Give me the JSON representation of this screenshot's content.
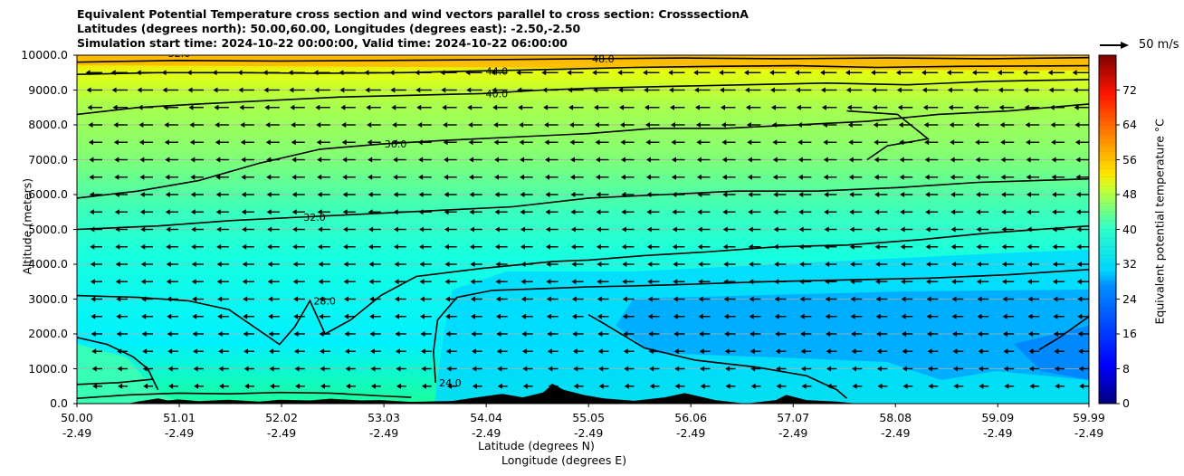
{
  "title": {
    "line1": "Equivalent Potential Temperature cross section and wind vectors parallel to cross section: CrosssectionA",
    "line2": "Latitudes (degrees north): 50.00,60.00, Longitudes (degrees east): -2.50,-2.50",
    "line3": "Simulation start time: 2024-10-22 00:00:00, Valid time: 2024-10-22 06:00:00"
  },
  "chart_data": {
    "type": "heatmap",
    "subtype": "filled contour cross section with wind vectors",
    "ylabel": "Altitude (meters)",
    "xlabel_lat": "Latitude (degrees N)",
    "xlabel_lon": "Longitude (degrees E)",
    "ylim": [
      0,
      10000
    ],
    "xlim": [
      50.0,
      59.99
    ],
    "y_ticks": [
      0,
      1000,
      2000,
      3000,
      4000,
      5000,
      6000,
      7000,
      8000,
      9000,
      10000
    ],
    "y_tick_labels": [
      "0.0",
      "1000.0",
      "2000.0",
      "3000.0",
      "4000.0",
      "5000.0",
      "6000.0",
      "7000.0",
      "8000.0",
      "9000.0",
      "10000.0"
    ],
    "x_ticks": [
      50.0,
      51.01,
      52.02,
      53.03,
      54.04,
      55.05,
      56.06,
      57.07,
      58.08,
      59.09,
      59.99
    ],
    "x_tick_lat_labels": [
      "50.00",
      "51.01",
      "52.02",
      "53.03",
      "54.04",
      "55.05",
      "56.06",
      "57.07",
      "58.08",
      "59.09",
      "59.99"
    ],
    "x_tick_lon_labels": [
      "-2.49",
      "-2.49",
      "-2.49",
      "-2.49",
      "-2.49",
      "-2.49",
      "-2.49",
      "-2.49",
      "-2.49",
      "-2.49",
      "-2.49"
    ],
    "grid": "horizontal",
    "colormap": "jet",
    "colorbar": {
      "label": "Equivalent potential temperature °C",
      "range": [
        0,
        80
      ],
      "ticks": [
        0,
        8,
        16,
        24,
        32,
        40,
        48,
        56,
        64,
        72
      ],
      "tick_labels": [
        "0",
        "8",
        "16",
        "24",
        "32",
        "40",
        "48",
        "56",
        "64",
        "72"
      ]
    },
    "wind_key": {
      "label": "50 m/s",
      "speed": 50
    },
    "contour_labels": [
      "52.0",
      "48.0",
      "44.0",
      "40.0",
      "36.0",
      "32.0",
      "28.0",
      "24.0"
    ],
    "contours": [
      {
        "level": 24,
        "segments": [
          [
            [
              53.54,
              600
            ],
            [
              53.52,
              1500
            ],
            [
              53.56,
              2400
            ],
            [
              53.75,
              3050
            ],
            [
              54.1,
              3250
            ],
            [
              54.6,
              3300
            ],
            [
              55.05,
              3350
            ],
            [
              55.5,
              3380
            ],
            [
              56.0,
              3420
            ],
            [
              56.8,
              3500
            ],
            [
              57.6,
              3550
            ],
            [
              58.4,
              3600
            ],
            [
              59.2,
              3700
            ],
            [
              59.99,
              3850
            ]
          ],
          [
            [
              55.05,
              2550
            ],
            [
              55.2,
              2300
            ],
            [
              55.6,
              1600
            ],
            [
              56.1,
              1250
            ],
            [
              56.7,
              1050
            ],
            [
              57.2,
              800
            ],
            [
              57.5,
              400
            ],
            [
              57.6,
              150
            ]
          ],
          [
            [
              59.5,
              1550
            ],
            [
              59.7,
              1900
            ],
            [
              59.99,
              2500
            ]
          ],
          [
            [
              51.6,
              20
            ],
            [
              52.4,
              60
            ],
            [
              53.2,
              20
            ],
            [
              53.8,
              60
            ],
            [
              54.4,
              30
            ],
            [
              55.1,
              40
            ],
            [
              55.8,
              50
            ],
            [
              56.3,
              40
            ]
          ]
        ]
      },
      {
        "level": 28,
        "segments": [
          [
            [
              50.0,
              1900
            ],
            [
              50.3,
              1700
            ],
            [
              50.55,
              1350
            ],
            [
              50.7,
              1000
            ],
            [
              50.75,
              700
            ],
            [
              50.8,
              400
            ]
          ],
          [
            [
              50.0,
              3100
            ],
            [
              50.6,
              3050
            ],
            [
              51.1,
              2950
            ],
            [
              51.5,
              2700
            ],
            [
              51.8,
              2100
            ],
            [
              52.0,
              1700
            ],
            [
              52.15,
              2200
            ],
            [
              52.3,
              2950
            ],
            [
              52.45,
              2000
            ],
            [
              52.7,
              2400
            ],
            [
              53.0,
              3100
            ],
            [
              53.35,
              3650
            ],
            [
              54.0,
              3880
            ],
            [
              54.7,
              4080
            ],
            [
              55.05,
              4120
            ],
            [
              55.6,
              4250
            ],
            [
              56.2,
              4350
            ],
            [
              56.9,
              4500
            ],
            [
              57.6,
              4550
            ],
            [
              58.3,
              4700
            ],
            [
              59.0,
              4900
            ],
            [
              59.99,
              5100
            ]
          ],
          [
            [
              50.0,
              550
            ],
            [
              50.4,
              600
            ],
            [
              50.75,
              700
            ]
          ]
        ]
      },
      {
        "level": 32,
        "segments": [
          [
            [
              50.0,
              5000
            ],
            [
              50.8,
              5100
            ],
            [
              51.5,
              5250
            ],
            [
              52.2,
              5350
            ],
            [
              52.9,
              5450
            ],
            [
              53.6,
              5550
            ],
            [
              54.3,
              5650
            ],
            [
              55.05,
              5900
            ],
            [
              55.8,
              6000
            ],
            [
              56.5,
              6100
            ],
            [
              57.3,
              6100
            ],
            [
              58.1,
              6200
            ],
            [
              58.9,
              6350
            ],
            [
              59.99,
              6450
            ]
          ],
          [
            [
              50.0,
              150
            ],
            [
              50.5,
              250
            ],
            [
              51.0,
              300
            ],
            [
              51.5,
              280
            ],
            [
              52.0,
              320
            ],
            [
              52.5,
              300
            ],
            [
              53.0,
              220
            ],
            [
              53.3,
              180
            ]
          ]
        ]
      },
      {
        "level": 36,
        "segments": [
          [
            [
              50.0,
              5900
            ],
            [
              50.6,
              6100
            ],
            [
              51.2,
              6400
            ],
            [
              51.8,
              6900
            ],
            [
              52.4,
              7300
            ],
            [
              53.0,
              7450
            ],
            [
              53.6,
              7550
            ],
            [
              54.3,
              7650
            ],
            [
              55.05,
              7750
            ],
            [
              55.7,
              7900
            ],
            [
              56.4,
              7900
            ],
            [
              57.1,
              8000
            ],
            [
              57.8,
              8100
            ],
            [
              58.5,
              8300
            ],
            [
              59.2,
              8400
            ],
            [
              59.99,
              8600
            ]
          ],
          [
            [
              57.6,
              8400
            ],
            [
              58.1,
              8300
            ],
            [
              58.4,
              7600
            ],
            [
              58.0,
              7400
            ],
            [
              57.8,
              7000
            ]
          ]
        ]
      },
      {
        "level": 40,
        "segments": [
          [
            [
              50.0,
              8300
            ],
            [
              50.6,
              8500
            ],
            [
              51.2,
              8600
            ],
            [
              51.9,
              8700
            ],
            [
              52.6,
              8800
            ],
            [
              53.3,
              8850
            ],
            [
              54.0,
              8900
            ],
            [
              54.6,
              9000
            ],
            [
              55.05,
              9050
            ],
            [
              55.8,
              9100
            ],
            [
              56.6,
              9150
            ],
            [
              57.4,
              9200
            ],
            [
              58.2,
              9150
            ],
            [
              59.0,
              9250
            ],
            [
              59.99,
              9300
            ]
          ]
        ]
      },
      {
        "level": 44,
        "segments": [
          [
            [
              50.0,
              9450
            ],
            [
              50.8,
              9500
            ],
            [
              51.6,
              9500
            ],
            [
              52.4,
              9480
            ],
            [
              53.2,
              9500
            ],
            [
              54.0,
              9550
            ],
            [
              54.8,
              9600
            ],
            [
              55.5,
              9650
            ],
            [
              56.3,
              9680
            ],
            [
              57.1,
              9700
            ],
            [
              57.9,
              9650
            ],
            [
              58.7,
              9680
            ],
            [
              59.99,
              9700
            ]
          ]
        ]
      },
      {
        "level": 48,
        "segments": [
          [
            [
              50.0,
              9800
            ],
            [
              51.0,
              9850
            ],
            [
              52.0,
              9830
            ],
            [
              53.0,
              9850
            ],
            [
              54.0,
              9870
            ],
            [
              55.05,
              9900
            ],
            [
              56.0,
              9920
            ],
            [
              57.0,
              9900
            ],
            [
              58.0,
              9920
            ],
            [
              59.0,
              9900
            ],
            [
              59.99,
              9930
            ]
          ]
        ]
      }
    ],
    "wind_vector_grid": {
      "x": [
        50.0,
        50.25,
        50.5,
        50.75,
        51.0,
        51.25,
        51.5,
        51.75,
        52.0,
        52.25,
        52.5,
        52.75,
        53.0,
        53.25,
        53.5,
        53.75,
        54.0,
        54.25,
        54.5,
        54.75,
        55.0,
        55.25,
        55.5,
        55.75,
        56.0,
        56.25,
        56.5,
        56.75,
        57.0,
        57.25,
        57.5,
        57.75,
        58.0,
        58.25,
        58.5,
        58.75,
        59.0,
        59.25,
        59.5,
        59.75,
        59.99
      ],
      "altitudes": [
        0,
        500,
        1000,
        1500,
        2000,
        2500,
        3000,
        3500,
        4000,
        4500,
        5000,
        5500,
        6000,
        6500,
        7000,
        7500,
        8000,
        8500,
        9000,
        9500
      ],
      "speed_by_altitude": [
        4,
        6,
        7,
        8,
        9,
        10,
        10,
        11,
        11,
        12,
        12,
        13,
        13,
        14,
        14,
        15,
        16,
        18,
        20,
        22
      ],
      "direction": "toward decreasing latitude"
    },
    "terrain_profile": [
      [
        50.0,
        0
      ],
      [
        50.5,
        0
      ],
      [
        50.6,
        60
      ],
      [
        50.8,
        150
      ],
      [
        50.9,
        90
      ],
      [
        51.0,
        120
      ],
      [
        51.2,
        70
      ],
      [
        51.5,
        110
      ],
      [
        51.8,
        60
      ],
      [
        52.0,
        110
      ],
      [
        52.3,
        90
      ],
      [
        52.5,
        140
      ],
      [
        52.8,
        90
      ],
      [
        53.0,
        100
      ],
      [
        53.3,
        50
      ],
      [
        53.6,
        30
      ],
      [
        54.0,
        200
      ],
      [
        54.2,
        280
      ],
      [
        54.4,
        180
      ],
      [
        54.6,
        320
      ],
      [
        54.7,
        560
      ],
      [
        54.8,
        400
      ],
      [
        55.0,
        250
      ],
      [
        55.2,
        150
      ],
      [
        55.5,
        80
      ],
      [
        55.8,
        180
      ],
      [
        56.0,
        300
      ],
      [
        56.3,
        100
      ],
      [
        56.6,
        0
      ],
      [
        56.9,
        100
      ],
      [
        57.0,
        250
      ],
      [
        57.2,
        100
      ],
      [
        57.5,
        60
      ],
      [
        57.7,
        0
      ],
      [
        59.99,
        0
      ]
    ]
  }
}
